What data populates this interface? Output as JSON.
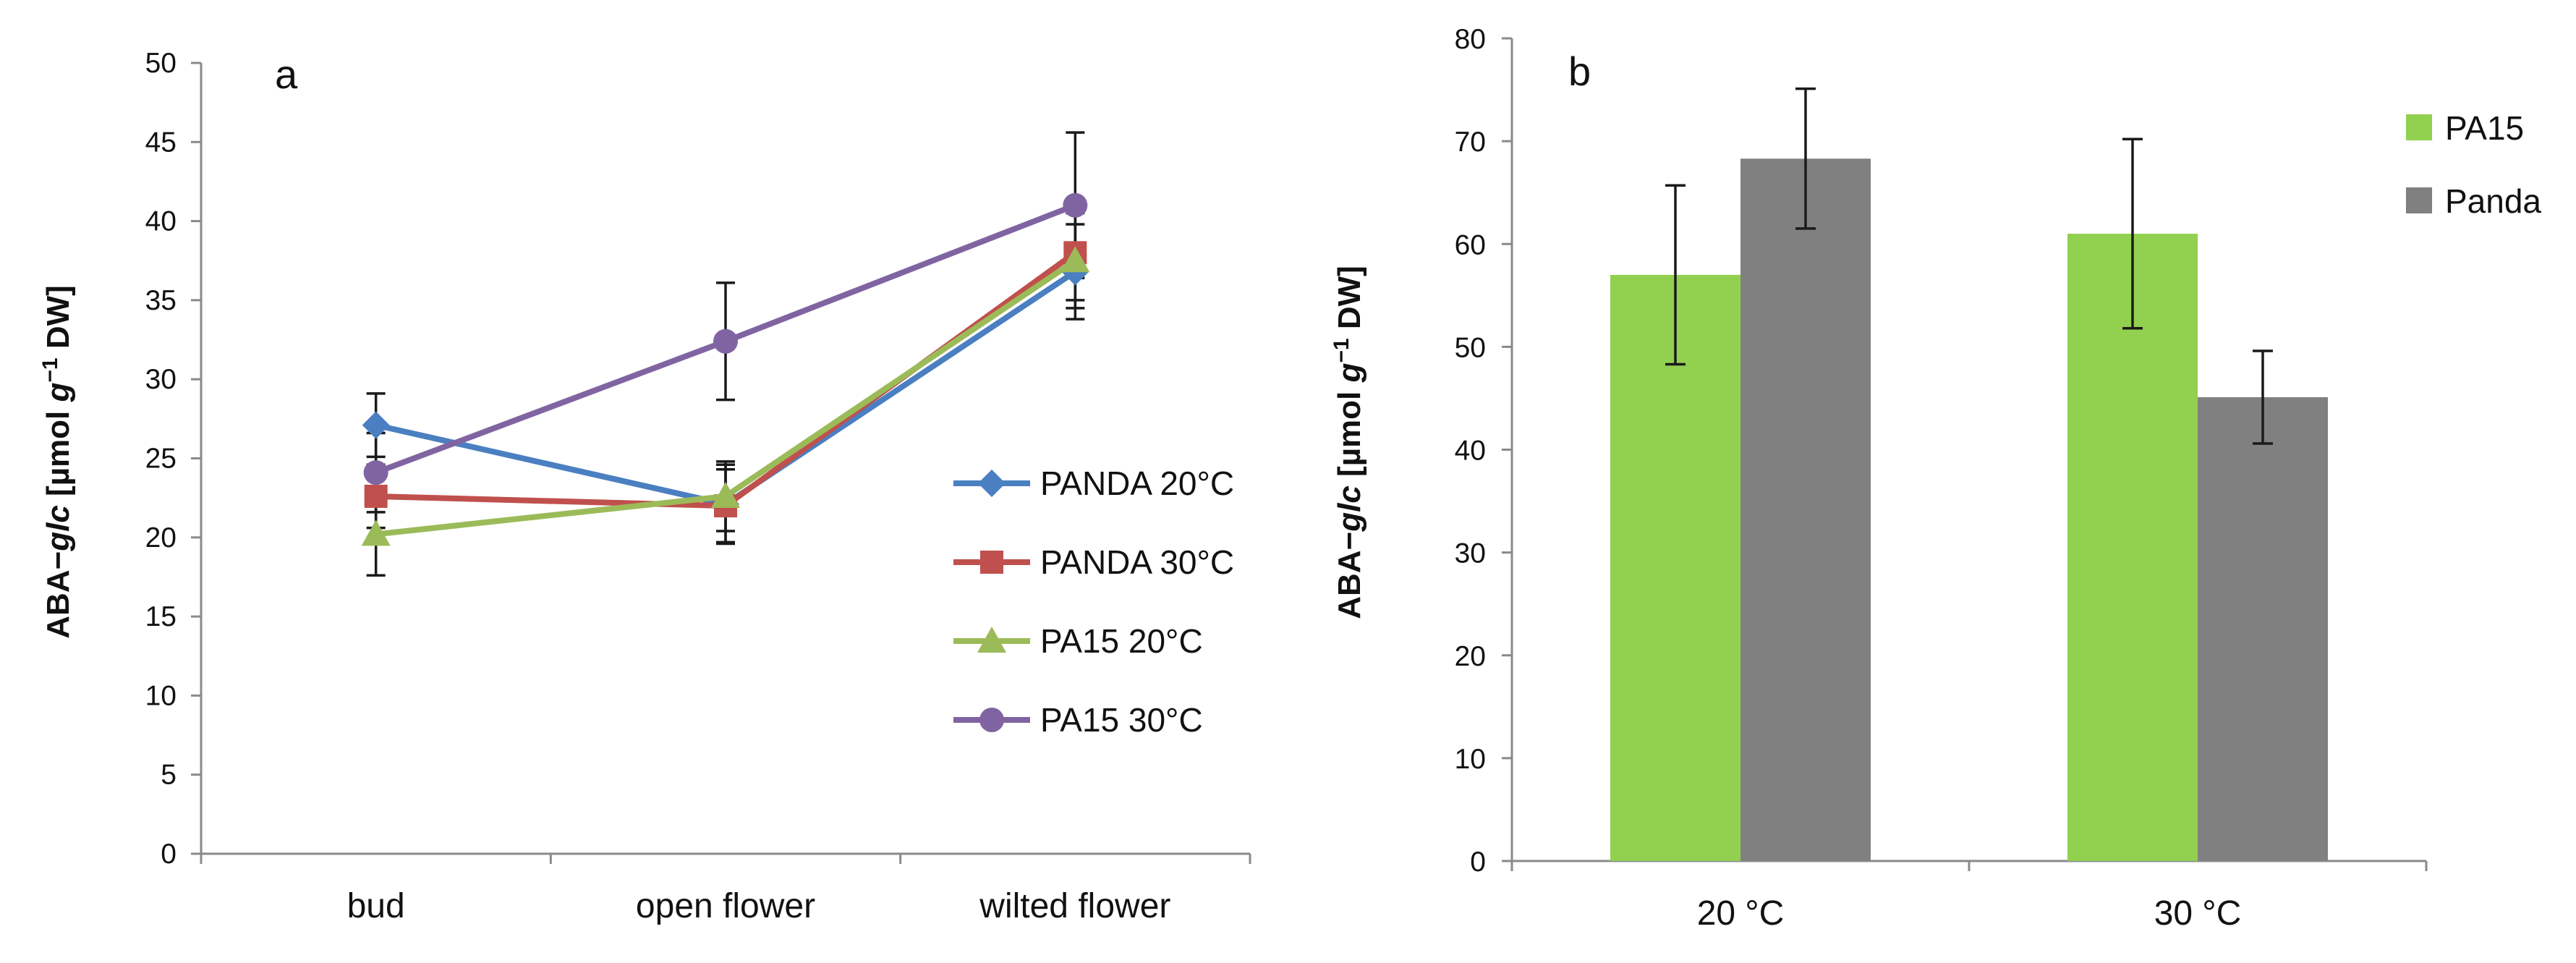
{
  "chart_data": [
    {
      "panel": "a",
      "type": "line",
      "ylabel": "ABA−glc [µmol g−1 DW]",
      "ylabel_parts": {
        "prefix": "ABA−",
        "italic1": "glc",
        "mid": " [µmol ",
        "italic2": "g",
        "sup": "−1",
        "suffix": " DW]"
      },
      "xlabel": "",
      "categories": [
        "bud",
        "open flower",
        "wilted flower"
      ],
      "ylim": [
        0,
        50
      ],
      "yticks": [
        0,
        5,
        10,
        15,
        20,
        25,
        30,
        35,
        40,
        45,
        50
      ],
      "legend_position": "right",
      "series": [
        {
          "name": "PANDA 20°C",
          "marker": "diamond",
          "color": "#4a7fc1",
          "values": [
            27.1,
            22.1,
            36.8
          ],
          "errors": [
            2.0,
            2.5,
            3.0
          ]
        },
        {
          "name": "PANDA 30°C",
          "marker": "square",
          "color": "#c0504d",
          "values": [
            22.6,
            22.0,
            38.0
          ],
          "errors": [
            2.0,
            2.3,
            3.0
          ]
        },
        {
          "name": "PA15 20°C",
          "marker": "triangle",
          "color": "#9bbb59",
          "values": [
            20.2,
            22.6,
            37.5
          ],
          "errors": [
            2.6,
            2.2,
            3.0
          ]
        },
        {
          "name": "PA15 30°C",
          "marker": "circle",
          "color": "#8064a2",
          "values": [
            24.1,
            32.4,
            41.0
          ],
          "errors": [
            2.5,
            3.7,
            4.6
          ]
        }
      ]
    },
    {
      "panel": "b",
      "type": "bar",
      "ylabel": "ABA−glc [µmol g−1 DW]",
      "ylabel_parts": {
        "prefix": "ABA−",
        "italic1": "glc",
        "mid": " [µmol ",
        "italic2": "g",
        "sup": "−1",
        "suffix": " DW]"
      },
      "xlabel": "",
      "categories": [
        "20 °C",
        "30 °C"
      ],
      "ylim": [
        0,
        80
      ],
      "yticks": [
        0,
        10,
        20,
        30,
        40,
        50,
        60,
        70,
        80
      ],
      "legend_position": "top-right",
      "series": [
        {
          "name": "PA15",
          "color": "#92d050",
          "values": [
            57.0,
            61.0
          ],
          "errors": [
            8.7,
            9.2
          ]
        },
        {
          "name": "Panda",
          "color": "#808080",
          "values": [
            68.3,
            45.1
          ],
          "errors": [
            6.8,
            4.5
          ]
        }
      ]
    }
  ]
}
